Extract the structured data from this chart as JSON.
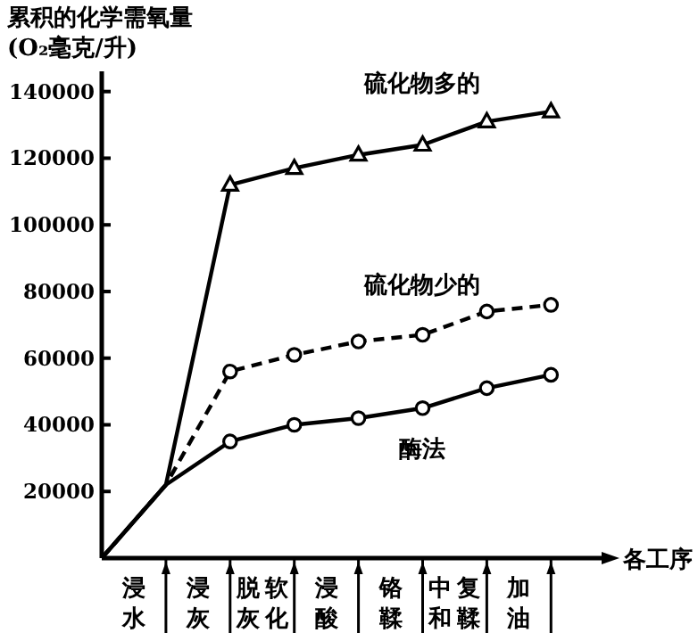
{
  "chart_data": {
    "type": "line",
    "ylabel": "累积的化学需氧量 (O₂毫克/升)",
    "xlabel": "各工序",
    "categories": [
      null,
      "浸水",
      null,
      "浸灰",
      null,
      "脱灰软化",
      null,
      "浸酸",
      null,
      "铬鞣",
      null,
      "中和复鞣",
      null,
      "加油",
      null
    ],
    "series": [
      {
        "name": "硫化物多的",
        "color": "#000000",
        "marker": "triangle",
        "line_style": "solid",
        "values": [
          0,
          null,
          22000,
          null,
          112000,
          null,
          117000,
          null,
          121000,
          null,
          124000,
          null,
          131000,
          null,
          134000
        ]
      },
      {
        "name": "硫化物少的",
        "color": "#000000",
        "marker": "circle",
        "line_style": "dashed",
        "values": [
          0,
          null,
          22000,
          null,
          56000,
          null,
          61000,
          null,
          65000,
          null,
          67000,
          null,
          74000,
          null,
          76000
        ]
      },
      {
        "name": "酶法",
        "color": "#000000",
        "marker": "circle",
        "line_style": "solid",
        "values": [
          0,
          null,
          22000,
          null,
          35000,
          null,
          40000,
          null,
          42000,
          null,
          45000,
          null,
          51000,
          null,
          55000
        ]
      }
    ],
    "ylim": [
      0,
      145000
    ],
    "yticks": [
      20000,
      40000,
      60000,
      80000,
      100000,
      120000,
      140000
    ],
    "grid": false
  }
}
